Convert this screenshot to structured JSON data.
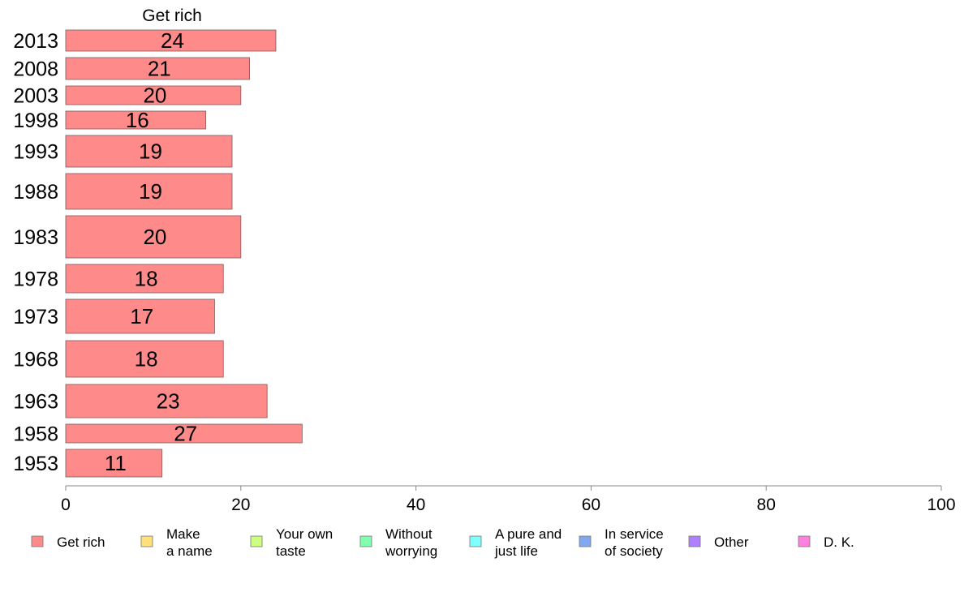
{
  "chart_data": {
    "type": "bar",
    "orientation": "horizontal",
    "title": "Get rich",
    "xlabel": "",
    "ylabel": "",
    "xlim": [
      0,
      100
    ],
    "xticks": [
      0,
      20,
      40,
      60,
      80,
      100
    ],
    "grid": false,
    "legend_position": "bottom",
    "categories": [
      "2013",
      "2008",
      "2003",
      "1998",
      "1993",
      "1988",
      "1983",
      "1978",
      "1973",
      "1968",
      "1963",
      "1958",
      "1953"
    ],
    "series": [
      {
        "name": "Get rich",
        "color": "#ff8a8a",
        "values": [
          24,
          21,
          20,
          16,
          19,
          19,
          20,
          18,
          17,
          18,
          23,
          27,
          11
        ],
        "labels": [
          "24",
          "21",
          "20",
          "16",
          "19",
          "19",
          "20",
          "18",
          "17",
          "18",
          "23",
          "27",
          "11"
        ]
      }
    ],
    "legend": [
      {
        "label": "Get rich",
        "color": "#ff8a8a"
      },
      {
        "label": "Make\na name",
        "color": "#ffe07a"
      },
      {
        "label": "Your own\ntaste",
        "color": "#ccff80"
      },
      {
        "label": "Without\nworrying",
        "color": "#80ffb0"
      },
      {
        "label": "A pure and\njust life",
        "color": "#80ffff"
      },
      {
        "label": "In service\nof society",
        "color": "#80a8f0"
      },
      {
        "label": "Other",
        "color": "#b080ff"
      },
      {
        "label": "D. K.",
        "color": "#ff80e0"
      }
    ]
  }
}
